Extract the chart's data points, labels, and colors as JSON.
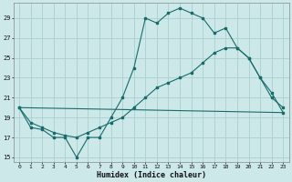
{
  "xlabel": "Humidex (Indice chaleur)",
  "bg_color": "#cce8e8",
  "grid_color": "#aacfcf",
  "line_color": "#1a6b6b",
  "xlim": [
    -0.5,
    23.5
  ],
  "ylim": [
    14.5,
    30.5
  ],
  "yticks": [
    15,
    17,
    19,
    21,
    23,
    25,
    27,
    29
  ],
  "xticks": [
    0,
    1,
    2,
    3,
    4,
    5,
    6,
    7,
    8,
    9,
    10,
    11,
    12,
    13,
    14,
    15,
    16,
    17,
    18,
    19,
    20,
    21,
    22,
    23
  ],
  "line1_x": [
    0,
    1,
    2,
    3,
    4,
    5,
    6,
    7,
    8,
    9,
    10,
    11,
    12,
    13,
    14,
    15,
    16,
    17,
    18,
    19,
    20,
    21,
    22,
    23
  ],
  "line1_y": [
    20,
    18.0,
    17.8,
    17.0,
    17.0,
    15.0,
    17.0,
    17.0,
    19.0,
    21.0,
    24.0,
    29.0,
    28.5,
    29.5,
    30.0,
    29.5,
    29.0,
    27.5,
    28.0,
    26.0,
    25.0,
    23.0,
    21.0,
    20.0
  ],
  "line2_x": [
    0,
    1,
    2,
    3,
    4,
    5,
    6,
    7,
    8,
    9,
    10,
    11,
    12,
    13,
    14,
    15,
    16,
    17,
    18,
    19,
    20,
    21,
    22,
    23
  ],
  "line2_y": [
    20.0,
    18.5,
    18.0,
    17.5,
    17.2,
    17.0,
    17.5,
    18.0,
    18.5,
    19.0,
    20.0,
    21.0,
    22.0,
    22.5,
    23.0,
    23.5,
    24.5,
    25.5,
    26.0,
    26.0,
    25.0,
    23.0,
    21.5,
    19.5
  ],
  "line3_x": [
    0,
    23
  ],
  "line3_y": [
    20.0,
    19.5
  ]
}
